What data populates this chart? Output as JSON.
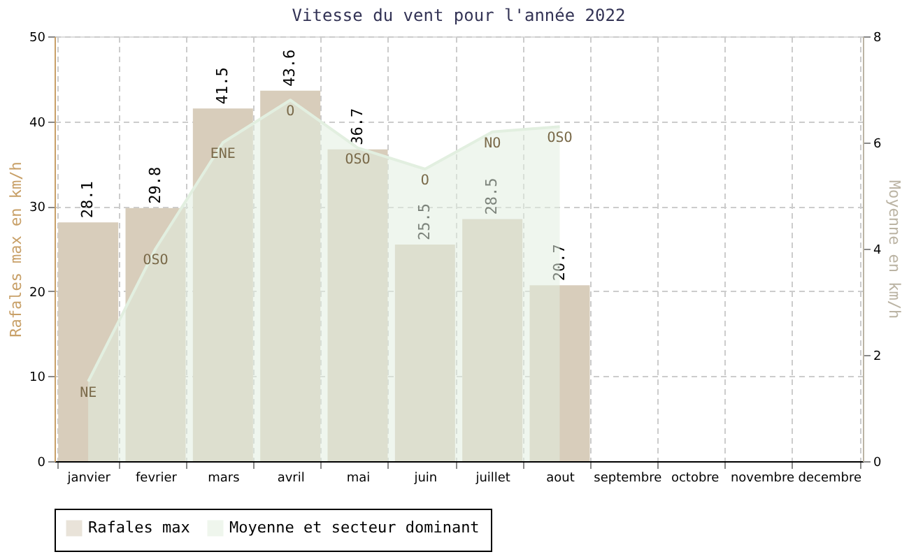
{
  "chart_data": {
    "type": "bar",
    "title": "Vitesse du vent pour l'année 2022",
    "categories": [
      "janvier",
      "fevrier",
      "mars",
      "avril",
      "mai",
      "juin",
      "juillet",
      "aout",
      "septembre",
      "octobre",
      "novembre",
      "decembre"
    ],
    "series": [
      {
        "name": "Rafales max",
        "color": "#d8cdbb",
        "values": [
          28.1,
          29.8,
          41.5,
          43.6,
          36.7,
          25.5,
          28.5,
          20.7,
          null,
          null,
          null,
          null
        ],
        "value_labels": [
          "28.1",
          "29.8",
          "41.5",
          "43.6",
          "36.7",
          "25.5",
          "28.5",
          "20.7",
          null,
          null,
          null,
          null
        ]
      },
      {
        "name": "Moyenne et secteur dominant",
        "type": "area",
        "axis": "y2",
        "color": "#e2efe0",
        "values": [
          1.5,
          4.0,
          6.0,
          6.8,
          5.9,
          5.5,
          6.2,
          6.3,
          null,
          null,
          null,
          null
        ],
        "value_labels": [
          "NE",
          "OSO",
          "ENE",
          "O",
          "OSO",
          "O",
          "NO",
          "OSO",
          null,
          null,
          null,
          null
        ]
      }
    ],
    "ylabel": "Rafales max en km/h",
    "y2label": "Moyenne en km/h",
    "ylim": [
      0,
      50
    ],
    "yticks": [
      0,
      10,
      20,
      30,
      40,
      50
    ],
    "y2lim": [
      0,
      8
    ],
    "y2ticks": [
      0,
      2,
      4,
      6,
      8
    ],
    "grid": true,
    "legend": "bottom"
  }
}
